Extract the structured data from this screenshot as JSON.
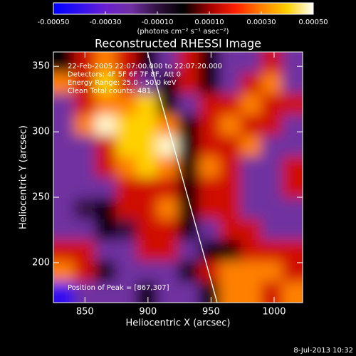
{
  "chart_data": {
    "type": "heatmap",
    "title": "Reconstructed RHESSI Image",
    "x_label": "Heliocentric X (arcsec)",
    "y_label": "Heliocentric Y (arcsec)",
    "xlim": [
      825,
      1022.6
    ],
    "ylim": [
      169.5,
      361
    ],
    "xticks": [
      850,
      900,
      950,
      1000
    ],
    "yticks": [
      200,
      250,
      300,
      350
    ],
    "annotations": [
      "22-Feb-2005 22:07:00.000 to 22:07:20.000",
      "Detectors: 4F 5F 6F 7F 8F, Att 0",
      "Energy Range: 25.0 - 50.0 keV",
      "Clean     Total counts: 481."
    ],
    "peak_label": "Position of Peak = [867,307]",
    "footer": "8-Jul-2013 10:32",
    "colorbar": {
      "label": "(photons cm⁻² s⁻¹ asec⁻²)",
      "lim": [
        -0.0005,
        0.0005
      ],
      "ticks": [
        {
          "value": -0.0005,
          "label": "-0.00050"
        },
        {
          "value": -0.0003,
          "label": "-0.00030"
        },
        {
          "value": -0.0001,
          "label": "-0.00010"
        },
        {
          "value": 0.0001,
          "label": "0.00010"
        },
        {
          "value": 0.0003,
          "label": "0.00030"
        },
        {
          "value": 0.0005,
          "label": "0.00050"
        }
      ]
    },
    "colormap": [
      "#0000ff",
      "#3010f0",
      "#6a20d0",
      "#7030a0",
      "#301040",
      "#000000",
      "#a00000",
      "#ff2000",
      "#ff8000",
      "#ffd000",
      "#ffffff"
    ],
    "values": [
      [
        0,
        0.00015,
        0.0003,
        0.00015,
        0,
        -0.0002,
        0.00015,
        0,
        -0.0002,
        -0.0002,
        0.00015,
        -0.0002
      ],
      [
        0.0003,
        0.00015,
        0.0004,
        0.00015,
        -0.0002,
        0,
        0.00015,
        0,
        -0.0002,
        0.00015,
        0.0003,
        -0.0002
      ],
      [
        -0.0002,
        0.00015,
        0.0003,
        0.0003,
        0.0004,
        0,
        -0.0002,
        0.00015,
        0.00015,
        0.0003,
        0.00015,
        0.00015
      ],
      [
        -0.0002,
        0.0003,
        0.00048,
        0.0004,
        0.0004,
        0.0003,
        0,
        0.00015,
        0.0003,
        0.00015,
        0.00015,
        -0.0002
      ],
      [
        -0.0002,
        -0.0002,
        0.00015,
        0.0004,
        0.0004,
        0.00048,
        0,
        0.00015,
        0.00015,
        0.0003,
        -0.0002,
        -0.0002
      ],
      [
        -0.0002,
        -0.0002,
        0.00015,
        0.0003,
        0.0004,
        0.0003,
        0,
        0.0003,
        0.00015,
        -0.0002,
        -0.0002,
        0.00015
      ],
      [
        -0.0002,
        -0.0002,
        -0.0002,
        0.00015,
        0.00015,
        0.00015,
        0,
        0.00015,
        0.00015,
        -0.0002,
        -0.0002,
        0.00015
      ],
      [
        -0.0002,
        -0.0001,
        0,
        0.00015,
        0.00015,
        0.0003,
        0,
        0.00015,
        0.00015,
        -0.0002,
        -0.0002,
        -0.0002
      ],
      [
        -0.0002,
        -0.0002,
        0,
        -0.0001,
        0.00015,
        0.00015,
        0,
        -0.0002,
        0.00015,
        0.00015,
        -0.0002,
        -0.0002
      ],
      [
        0.00015,
        0.00015,
        -0.0002,
        -0.0002,
        0.00015,
        0.00015,
        -0.0002,
        0,
        0,
        0.00015,
        0.00015,
        0.00015
      ],
      [
        0.0003,
        0.00015,
        0,
        -0.0002,
        -0.0002,
        -0.0002,
        0,
        0.00015,
        0.0003,
        0.0003,
        0.0003,
        0.00015
      ],
      [
        -0.0004,
        -0.0002,
        -0.0002,
        -0.0002,
        0,
        -0.0002,
        -0.0002,
        0,
        0.0003,
        0.0003,
        0.00015,
        0.0003
      ]
    ]
  }
}
